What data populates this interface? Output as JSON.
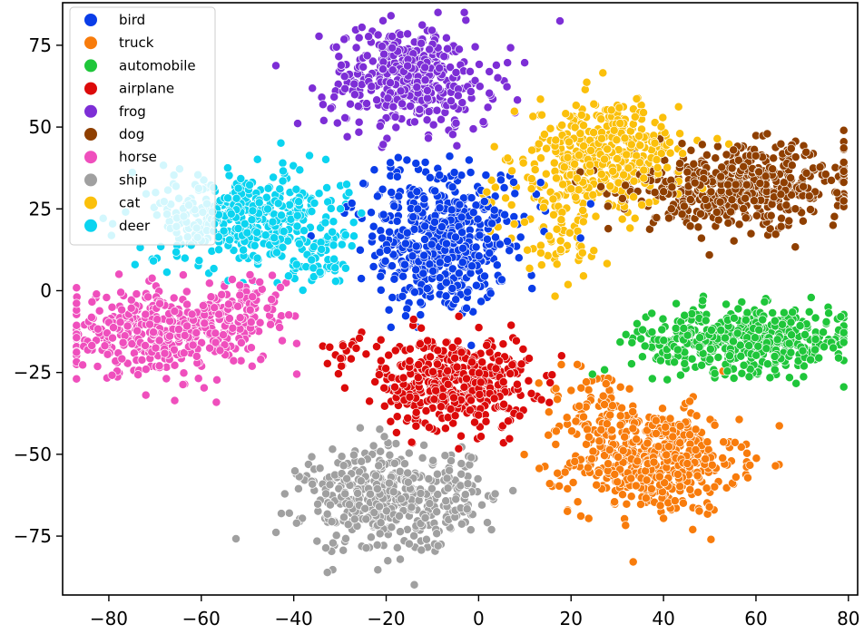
{
  "chart_data": {
    "type": "scatter",
    "title": "",
    "xlabel": "",
    "ylabel": "",
    "xlim": [
      -90,
      82
    ],
    "ylim": [
      -93,
      88
    ],
    "xticks": [
      -80,
      -60,
      -40,
      -20,
      0,
      20,
      40,
      60,
      80
    ],
    "yticks": [
      -75,
      -50,
      -25,
      0,
      25,
      50,
      75
    ],
    "xtick_labels": [
      "−80",
      "−60",
      "−40",
      "−20",
      "0",
      "20",
      "40",
      "60",
      "80"
    ],
    "ytick_labels": [
      "−75",
      "−50",
      "−25",
      "0",
      "25",
      "50",
      "75"
    ],
    "grid": false,
    "legend_position": "upper-left",
    "series": [
      {
        "name": "bird",
        "color": "#0a3de8",
        "clusters": [
          {
            "cx": -8,
            "cy": 12,
            "sx": 7,
            "sy": 10,
            "n": 420
          },
          {
            "cx": -15,
            "cy": 28,
            "sx": 6,
            "sy": 6,
            "n": 70
          },
          {
            "cx": 5,
            "cy": 25,
            "sx": 10,
            "sy": 8,
            "n": 40
          }
        ]
      },
      {
        "name": "truck",
        "color": "#f87c0c",
        "clusters": [
          {
            "cx": 38,
            "cy": -52,
            "sx": 9,
            "sy": 8,
            "n": 480
          },
          {
            "cx": 25,
            "cy": -35,
            "sx": 6,
            "sy": 6,
            "n": 60
          }
        ]
      },
      {
        "name": "automobile",
        "color": "#1fc63a",
        "clusters": [
          {
            "cx": 60,
            "cy": -15,
            "sx": 11,
            "sy": 5,
            "n": 420
          },
          {
            "cx": 45,
            "cy": -15,
            "sx": 6,
            "sy": 5,
            "n": 60
          }
        ]
      },
      {
        "name": "airplane",
        "color": "#dc0a0a",
        "clusters": [
          {
            "cx": -5,
            "cy": -28,
            "sx": 8,
            "sy": 7,
            "n": 440
          },
          {
            "cx": -28,
            "cy": -18,
            "sx": 3,
            "sy": 3,
            "n": 20
          }
        ]
      },
      {
        "name": "frog",
        "color": "#7d2ed6",
        "clusters": [
          {
            "cx": -15,
            "cy": 65,
            "sx": 9,
            "sy": 8,
            "n": 420
          }
        ]
      },
      {
        "name": "dog",
        "color": "#8f3f00",
        "clusters": [
          {
            "cx": 58,
            "cy": 32,
            "sx": 12,
            "sy": 6,
            "n": 460
          },
          {
            "cx": 40,
            "cy": 28,
            "sx": 6,
            "sy": 5,
            "n": 60
          }
        ]
      },
      {
        "name": "horse",
        "color": "#ef4fbd",
        "clusters": [
          {
            "cx": -68,
            "cy": -13,
            "sx": 11,
            "sy": 6,
            "n": 440
          },
          {
            "cx": -50,
            "cy": -3,
            "sx": 5,
            "sy": 4,
            "n": 60
          }
        ]
      },
      {
        "name": "ship",
        "color": "#a0a0a0",
        "clusters": [
          {
            "cx": -20,
            "cy": -64,
            "sx": 9,
            "sy": 8,
            "n": 420
          },
          {
            "cx": -5,
            "cy": -62,
            "sx": 4,
            "sy": 6,
            "n": 40
          }
        ]
      },
      {
        "name": "cat",
        "color": "#fbc00b",
        "clusters": [
          {
            "cx": 28,
            "cy": 42,
            "sx": 8,
            "sy": 8,
            "n": 360
          },
          {
            "cx": 15,
            "cy": 32,
            "sx": 8,
            "sy": 8,
            "n": 80
          },
          {
            "cx": 20,
            "cy": 15,
            "sx": 4,
            "sy": 6,
            "n": 40
          }
        ]
      },
      {
        "name": "deer",
        "color": "#0bd4f0",
        "clusters": [
          {
            "cx": -50,
            "cy": 22,
            "sx": 10,
            "sy": 7,
            "n": 440
          },
          {
            "cx": -35,
            "cy": 8,
            "sx": 4,
            "sy": 4,
            "n": 40
          }
        ]
      }
    ]
  }
}
